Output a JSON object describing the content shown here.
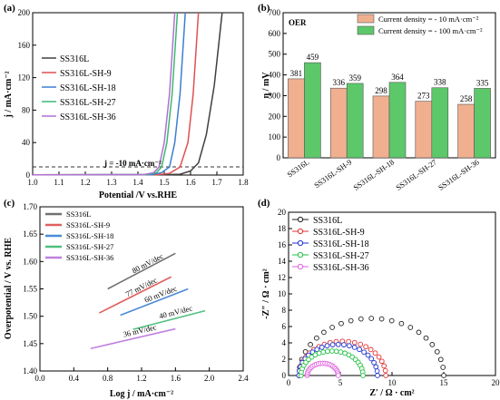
{
  "chart_data": [
    {
      "panel": "(a)",
      "type": "line",
      "xlabel": "Potential /V vs.RHE",
      "ylabel": "j / mA·cm⁻²",
      "xlim": [
        1.0,
        1.8
      ],
      "ylim": [
        0,
        200
      ],
      "xticks": [
        "1.0",
        "1.1",
        "1.2",
        "1.3",
        "1.4",
        "1.5",
        "1.6",
        "1.7",
        "1.8"
      ],
      "yticks": [
        "0",
        "40",
        "80",
        "120",
        "160",
        "200"
      ],
      "legend_position": "center-left",
      "annotation": "j = -10 mA·cm⁻²",
      "reference_line_y": 10,
      "series": [
        {
          "name": "SS316L",
          "color": "#404040",
          "points": [
            [
              1.0,
              0.3
            ],
            [
              1.5,
              0.5
            ],
            [
              1.56,
              1
            ],
            [
              1.6,
              5
            ],
            [
              1.63,
              15
            ],
            [
              1.66,
              50
            ],
            [
              1.69,
              110
            ],
            [
              1.72,
              200
            ]
          ]
        },
        {
          "name": "SS316L-SH-9",
          "color": "#e05050",
          "points": [
            [
              1.0,
              0.3
            ],
            [
              1.47,
              0.5
            ],
            [
              1.52,
              2
            ],
            [
              1.56,
              10
            ],
            [
              1.59,
              40
            ],
            [
              1.61,
              100
            ],
            [
              1.63,
              200
            ]
          ]
        },
        {
          "name": "SS316L-SH-18",
          "color": "#3a7fd0",
          "points": [
            [
              1.0,
              0.3
            ],
            [
              1.45,
              0.5
            ],
            [
              1.49,
              3
            ],
            [
              1.52,
              10
            ],
            [
              1.54,
              40
            ],
            [
              1.56,
              100
            ],
            [
              1.58,
              200
            ]
          ]
        },
        {
          "name": "SS316L-SH-27",
          "color": "#3cb873",
          "points": [
            [
              1.0,
              0.3
            ],
            [
              1.43,
              0.5
            ],
            [
              1.47,
              3
            ],
            [
              1.49,
              10
            ],
            [
              1.51,
              40
            ],
            [
              1.53,
              100
            ],
            [
              1.55,
              200
            ]
          ]
        },
        {
          "name": "SS316L-SH-36",
          "color": "#b070d0",
          "points": [
            [
              1.0,
              0.3
            ],
            [
              1.42,
              0.5
            ],
            [
              1.46,
              3
            ],
            [
              1.48,
              10
            ],
            [
              1.5,
              40
            ],
            [
              1.52,
              100
            ],
            [
              1.54,
              200
            ]
          ]
        }
      ]
    },
    {
      "panel": "(b)",
      "type": "bar",
      "title": "OER",
      "ylabel": "η / mV",
      "ylim": [
        0,
        700
      ],
      "yticks": [
        "0",
        "100",
        "200",
        "300",
        "400",
        "500",
        "600",
        "700"
      ],
      "categories": [
        "SS316L",
        "SS316L-SH-9",
        "SS316L-SH-18",
        "SS316L-SH-27",
        "SS316L-SH-36"
      ],
      "legend_position": "top-right",
      "series": [
        {
          "name": "Current density = - 10 mA·cm⁻²",
          "color": "#f0b090",
          "values": [
            381,
            336,
            298,
            273,
            258
          ]
        },
        {
          "name": "Current density = - 100 mA·cm⁻²",
          "color": "#5cc86a",
          "values": [
            459,
            359,
            364,
            338,
            335
          ]
        }
      ]
    },
    {
      "panel": "(c)",
      "type": "line",
      "xlabel": "Log j / mA·cm⁻²",
      "ylabel": "Overpotential / V vs. RHE",
      "xlim": [
        0.0,
        2.4
      ],
      "ylim": [
        1.4,
        1.7
      ],
      "xticks": [
        "0.0",
        "0.4",
        "0.8",
        "1.2",
        "1.6",
        "2.0",
        "2.4"
      ],
      "yticks": [
        "1.40",
        "1.45",
        "1.50",
        "1.55",
        "1.60",
        "1.65",
        "1.70"
      ],
      "legend_position": "top-left",
      "series": [
        {
          "name": "SS316L",
          "color": "#707070",
          "slope_label": "80 mV/dec",
          "points": [
            [
              0.8,
              1.55
            ],
            [
              1.6,
              1.615
            ]
          ]
        },
        {
          "name": "SS316L-SH-9",
          "color": "#e06060",
          "slope_label": "77 mV/dec",
          "points": [
            [
              0.7,
              1.506
            ],
            [
              1.55,
              1.572
            ]
          ]
        },
        {
          "name": "SS316L-SH-18",
          "color": "#4a8ad8",
          "slope_label": "60 mV/dec",
          "points": [
            [
              0.95,
              1.502
            ],
            [
              1.75,
              1.55
            ]
          ]
        },
        {
          "name": "SS316L-SH-27",
          "color": "#50c080",
          "slope_label": "40 mV/dec",
          "points": [
            [
              1.1,
              1.476
            ],
            [
              1.95,
              1.51
            ]
          ]
        },
        {
          "name": "SS316L-SH-36",
          "color": "#c080e0",
          "slope_label": "36 mV/dec",
          "points": [
            [
              0.6,
              1.441
            ],
            [
              1.6,
              1.477
            ]
          ]
        }
      ]
    },
    {
      "panel": "(d)",
      "type": "scatter",
      "xlabel": "Z′ / Ω · cm²",
      "ylabel": "-Z″ / Ω · cm²",
      "xlim": [
        0,
        20
      ],
      "ylim": [
        0,
        20
      ],
      "xticks": [
        "0",
        "5",
        "10",
        "15",
        "20"
      ],
      "yticks": [
        "0",
        "2",
        "4",
        "6",
        "8",
        "10",
        "12",
        "14",
        "16",
        "18",
        "20"
      ],
      "legend_position": "top-left",
      "series": [
        {
          "name": "SS316L",
          "color": "#202020",
          "r_start": 1.0,
          "r_end": 15.0
        },
        {
          "name": "SS316L-SH-9",
          "color": "#e03030",
          "r_start": 1.0,
          "r_end": 9.4
        },
        {
          "name": "SS316L-SH-18",
          "color": "#1a30d0",
          "r_start": 1.0,
          "r_end": 8.6
        },
        {
          "name": "SS316L-SH-27",
          "color": "#20c040",
          "r_start": 1.2,
          "r_end": 7.2
        },
        {
          "name": "SS316L-SH-36",
          "color": "#e060e0",
          "r_start": 1.8,
          "r_end": 4.8
        }
      ]
    }
  ]
}
